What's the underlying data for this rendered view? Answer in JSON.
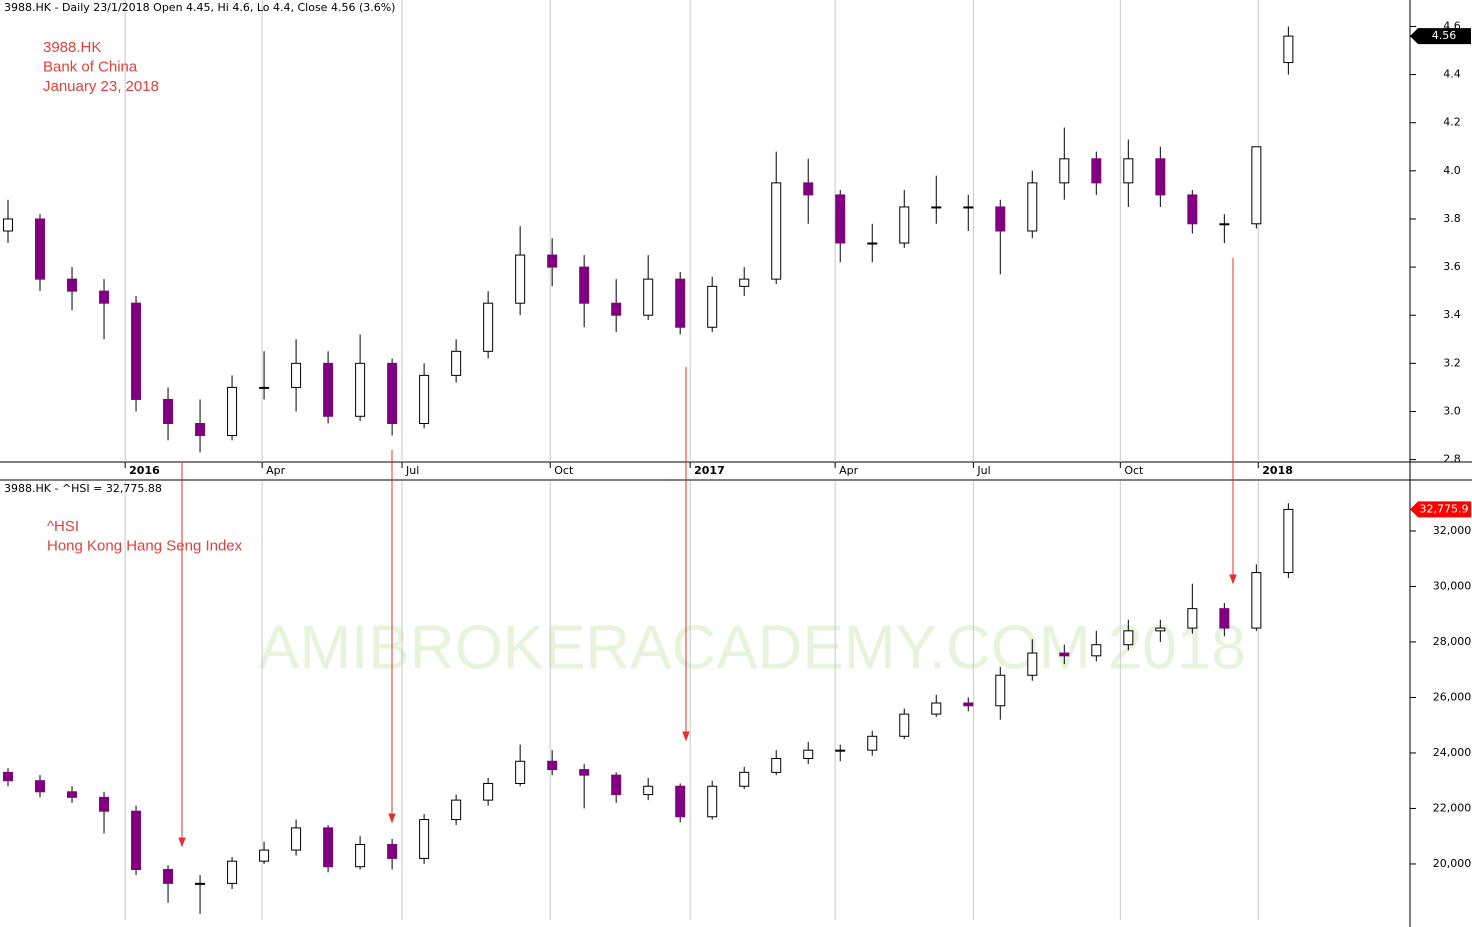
{
  "chart_data": [
    {
      "type": "candlestick",
      "title": "3988.HK - Daily 23/1/2018 Open 4.45, Hi 4.6, Lo 4.4, Close 4.56 (3.6%)",
      "annotations": [
        "3988.HK",
        "Bank of China",
        "January 23, 2018"
      ],
      "open": [
        3.75,
        3.8,
        3.55,
        3.5,
        3.45,
        3.05,
        2.95,
        2.9,
        3.1,
        3.1,
        3.2,
        2.98,
        3.2,
        2.95,
        3.15,
        3.25,
        3.45,
        3.65,
        3.6,
        3.45,
        3.4,
        3.55,
        3.35,
        3.52,
        3.55,
        3.95,
        3.9,
        3.7,
        3.7,
        3.85,
        3.85,
        3.85,
        3.75,
        3.95,
        4.05,
        3.95,
        4.05,
        3.9,
        3.78,
        3.78,
        4.45
      ],
      "high": [
        3.88,
        3.82,
        3.6,
        3.55,
        3.48,
        3.1,
        3.05,
        3.15,
        3.25,
        3.3,
        3.25,
        3.32,
        3.22,
        3.2,
        3.3,
        3.5,
        3.77,
        3.72,
        3.65,
        3.55,
        3.65,
        3.58,
        3.56,
        3.6,
        4.08,
        4.05,
        3.92,
        3.78,
        3.92,
        3.98,
        3.9,
        3.88,
        4.0,
        4.18,
        4.08,
        4.13,
        4.1,
        3.92,
        3.82,
        4.1,
        4.6
      ],
      "low": [
        3.7,
        3.5,
        3.42,
        3.3,
        3.0,
        2.88,
        2.83,
        2.88,
        3.05,
        3.0,
        2.95,
        2.96,
        2.9,
        2.93,
        3.12,
        3.22,
        3.4,
        3.52,
        3.35,
        3.33,
        3.38,
        3.32,
        3.33,
        3.48,
        3.53,
        3.78,
        3.62,
        3.62,
        3.68,
        3.78,
        3.75,
        3.57,
        3.72,
        3.88,
        3.9,
        3.85,
        3.85,
        3.74,
        3.7,
        3.76,
        4.4
      ],
      "close": [
        3.8,
        3.55,
        3.5,
        3.45,
        3.05,
        2.95,
        2.9,
        3.1,
        3.1,
        3.2,
        2.98,
        3.2,
        2.95,
        3.15,
        3.25,
        3.45,
        3.65,
        3.6,
        3.45,
        3.4,
        3.55,
        3.35,
        3.52,
        3.55,
        3.95,
        3.9,
        3.7,
        3.7,
        3.85,
        3.85,
        3.85,
        3.75,
        3.95,
        4.05,
        3.95,
        4.05,
        3.9,
        3.78,
        3.78,
        4.1,
        4.56
      ],
      "up_color": "#ffffff",
      "down_color": "#800080",
      "tag_color": "#000000",
      "price_tag": "4.56",
      "ylim": [
        2.79,
        4.71
      ],
      "yticks": [
        2.8,
        {
          "value": 3,
          "label": "3.0"
        },
        3.2,
        3.4,
        3.6,
        3.8,
        {
          "value": 4,
          "label": "4.0"
        },
        4.2,
        4.4,
        4.6
      ],
      "xlim": [
        -0.25,
        43.8
      ],
      "xticks": [
        {
          "value": 3.66,
          "label": "2016"
        },
        {
          "value": 7.94,
          "label": "Apr"
        },
        {
          "value": 12.31,
          "label": "Jul"
        },
        {
          "value": 16.94,
          "label": "Oct"
        },
        {
          "value": 21.31,
          "label": "2017"
        },
        {
          "value": 25.84,
          "label": "Apr"
        },
        {
          "value": 30.16,
          "label": "Jul"
        },
        {
          "value": 34.75,
          "label": "Oct"
        },
        {
          "value": 39.06,
          "label": "2018"
        }
      ]
    },
    {
      "type": "candlestick",
      "title": "3988.HK - ^HSI = 32,775.88",
      "annotations": [
        "^HSI",
        "Hong Kong Hang Seng Index"
      ],
      "open": [
        23300,
        23000,
        22600,
        22400,
        21900,
        19800,
        19300,
        19300,
        20100,
        20500,
        21300,
        19900,
        20700,
        20200,
        21600,
        22300,
        22900,
        23700,
        23400,
        23200,
        22500,
        22800,
        21700,
        22800,
        23300,
        23800,
        24100,
        24100,
        24600,
        25400,
        25800,
        25700,
        26800,
        27600,
        27500,
        27900,
        28400,
        28500,
        29200,
        28500,
        30500
      ],
      "high": [
        23450,
        23200,
        22800,
        22600,
        22100,
        19950,
        19600,
        20250,
        20800,
        21600,
        21400,
        21000,
        20900,
        21800,
        22500,
        23100,
        24300,
        24100,
        23600,
        23300,
        23100,
        22900,
        23000,
        23500,
        24100,
        24400,
        24300,
        24800,
        25600,
        26100,
        26000,
        27100,
        28100,
        27900,
        28400,
        28800,
        28800,
        30100,
        29400,
        30800,
        33000
      ],
      "low": [
        22800,
        22400,
        22200,
        21100,
        19600,
        18600,
        18200,
        19100,
        20000,
        20300,
        19700,
        19800,
        19800,
        20000,
        21400,
        22100,
        22800,
        23200,
        22000,
        22200,
        22300,
        21500,
        21600,
        22700,
        23200,
        23600,
        23700,
        23900,
        24500,
        25300,
        25500,
        25200,
        26600,
        27200,
        27300,
        27700,
        28000,
        28300,
        28200,
        28400,
        30300
      ],
      "close": [
        23000,
        22600,
        22400,
        21900,
        19800,
        19300,
        19300,
        20100,
        20500,
        21300,
        19900,
        20700,
        20200,
        21600,
        22300,
        22900,
        23700,
        23400,
        23200,
        22500,
        22800,
        21700,
        22800,
        23300,
        23800,
        24100,
        24100,
        24600,
        25400,
        25800,
        25700,
        26800,
        27600,
        27500,
        27900,
        28400,
        28500,
        29200,
        28500,
        30500,
        32775.88
      ],
      "up_color": "#ffffff",
      "down_color": "#800080",
      "tag_color": "#ff0000",
      "price_tag": "32,775.9",
      "ylim": [
        17980,
        33800
      ],
      "yticks": [
        {
          "value": 20000,
          "label": "20,000"
        },
        {
          "value": 22000,
          "label": "22,000"
        },
        {
          "value": 24000,
          "label": "24,000"
        },
        {
          "value": 26000,
          "label": "26,000"
        },
        {
          "value": 28000,
          "label": "28,000"
        },
        {
          "value": 30000,
          "label": "30,000"
        },
        {
          "value": 32000,
          "label": "32,000"
        }
      ],
      "xlim": [
        -0.25,
        43.8
      ],
      "xticks": [
        3.66,
        7.94,
        12.31,
        16.94,
        21.31,
        25.84,
        30.16,
        34.75,
        39.06
      ]
    }
  ],
  "watermark": "AMIBROKERACADEMY.COM  2018"
}
